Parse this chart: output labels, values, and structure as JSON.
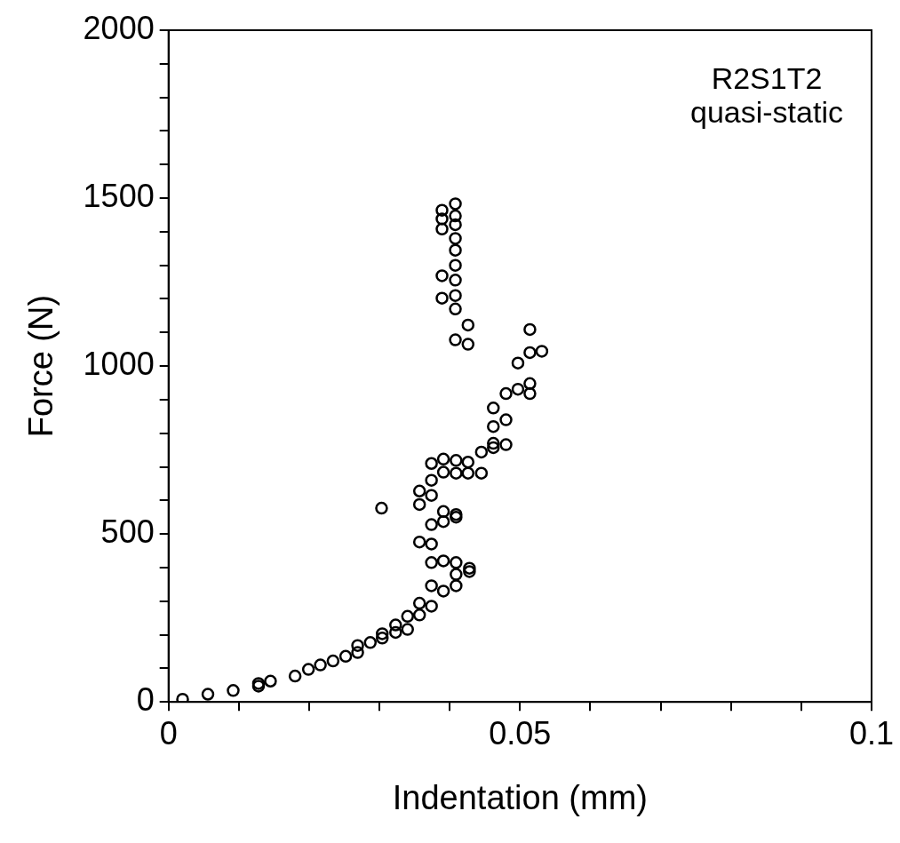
{
  "chart_data": {
    "type": "scatter",
    "xlabel": "Indentation (mm)",
    "ylabel": "Force (N)",
    "annotations": [
      "R2S1T2",
      "quasi-static"
    ],
    "xlim": [
      0,
      0.1
    ],
    "ylim": [
      0,
      2000
    ],
    "xticks": [
      0,
      {
        "value": 0.01,
        "label": null
      },
      {
        "value": 0.02,
        "label": null
      },
      {
        "value": 0.03,
        "label": null
      },
      {
        "value": 0.04,
        "label": null
      },
      0.05,
      {
        "value": 0.06,
        "label": null
      },
      {
        "value": 0.07,
        "label": null
      },
      {
        "value": 0.08,
        "label": null
      },
      {
        "value": 0.09,
        "label": null
      },
      0.1
    ],
    "yticks": [
      0,
      {
        "value": 100,
        "label": null
      },
      {
        "value": 200,
        "label": null
      },
      {
        "value": 300,
        "label": null
      },
      {
        "value": 400,
        "label": null
      },
      500,
      {
        "value": 600,
        "label": null
      },
      {
        "value": 700,
        "label": null
      },
      {
        "value": 800,
        "label": null
      },
      {
        "value": 900,
        "label": null
      },
      1000,
      {
        "value": 1100,
        "label": null
      },
      {
        "value": 1200,
        "label": null
      },
      {
        "value": 1300,
        "label": null
      },
      {
        "value": 1400,
        "label": null
      },
      1500,
      {
        "value": 1600,
        "label": null
      },
      {
        "value": 1700,
        "label": null
      },
      {
        "value": 1800,
        "label": null
      },
      {
        "value": 1900,
        "label": null
      },
      2000
    ],
    "marker": "circle",
    "grid": false,
    "legend": false,
    "series": [
      {
        "color": "#000000",
        "x": [
          0.002,
          0.0056,
          0.0092,
          0.0128,
          0.0128,
          0.0145,
          0.018,
          0.0199,
          0.0216,
          0.0234,
          0.0252,
          0.0269,
          0.0269,
          0.0287,
          0.0304,
          0.0304,
          0.0323,
          0.0323,
          0.034,
          0.034,
          0.0357,
          0.0357,
          0.0374,
          0.0374,
          0.0391,
          0.0409,
          0.0409,
          0.0409,
          0.0428,
          0.0428,
          0.0391,
          0.0374,
          0.0374,
          0.0374,
          0.0357,
          0.0391,
          0.0391,
          0.0409,
          0.0409,
          0.0357,
          0.0357,
          0.0374,
          0.0374,
          0.0374,
          0.0303,
          0.0391,
          0.0391,
          0.0409,
          0.0409,
          0.0426,
          0.0426,
          0.0445,
          0.0445,
          0.0462,
          0.0462,
          0.0462,
          0.0462,
          0.048,
          0.048,
          0.048,
          0.0497,
          0.0497,
          0.0514,
          0.0514,
          0.0514,
          0.0514,
          0.0531,
          0.0389,
          0.0389,
          0.0389,
          0.0389,
          0.0389,
          0.0408,
          0.0408,
          0.0408,
          0.0408,
          0.0408,
          0.0408,
          0.0408,
          0.0408,
          0.0408,
          0.0408,
          0.0426,
          0.0426
        ],
        "values": [
          8,
          23,
          34,
          47,
          55,
          62,
          77,
          97,
          110,
          122,
          136,
          147,
          168,
          177,
          190,
          203,
          207,
          229,
          216,
          255,
          259,
          294,
          285,
          346,
          330,
          346,
          380,
          415,
          398,
          388,
          420,
          415,
          470,
          528,
          476,
          537,
          567,
          558,
          550,
          628,
          588,
          660,
          615,
          710,
          577,
          723,
          684,
          719,
          681,
          714,
          681,
          744,
          681,
          757,
          820,
          875,
          770,
          918,
          840,
          766,
          1009,
          931,
          1109,
          1040,
          918,
          948,
          1044,
          1464,
          1438,
          1408,
          1269,
          1202,
          1483,
          1447,
          1421,
          1380,
          1345,
          1300,
          1256,
          1210,
          1170,
          1078,
          1122,
          1065
        ]
      }
    ]
  }
}
